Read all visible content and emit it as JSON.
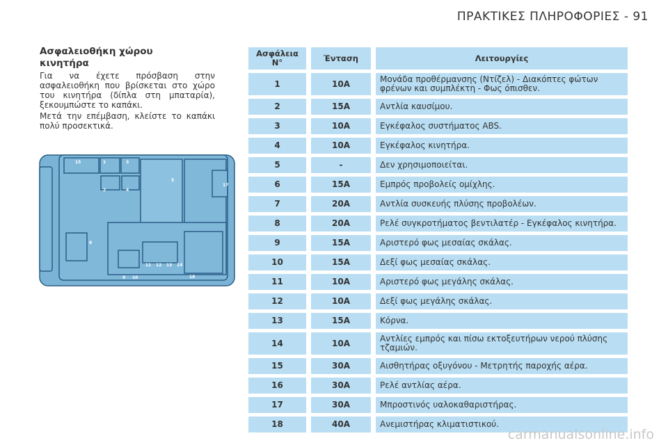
{
  "header": {
    "title": "ΠΡΑΚΤΙΚΕΣ ΠΛΗΡΟΦΟΡΙΕΣ - 91"
  },
  "section": {
    "title": "Ασφαλειοθήκη χώρου κινητήρα",
    "paragraphs": [
      "Για να έχετε πρόσβαση στην ασφαλειοθήκη που βρίσκεται στο χώρο του κινητήρα (δίπλα στη μπαταρία), ξεκουμπώστε το καπάκι.",
      "Μετά την επέμβαση, κλείστε το καπάκι πολύ προσεκτικά."
    ]
  },
  "diagram": {
    "labels": [
      "15",
      "1",
      "3",
      "2",
      "4",
      "5",
      "17",
      "8",
      "9",
      "10",
      "11",
      "12",
      "13",
      "14",
      "18"
    ]
  },
  "table": {
    "columns": [
      "Ασφάλεια\nN°",
      "Ένταση",
      "Λειτουργίες"
    ],
    "rows": [
      [
        "1",
        "10A",
        "Μονάδα προθέρμανσης (Ντίζελ) - Διακόπτες φώτων φρένων και συμπλέκτη - Φως όπισθεν."
      ],
      [
        "2",
        "15A",
        "Αντλία καυσίμου."
      ],
      [
        "3",
        "10A",
        "Εγκέφαλος συστήματος ABS."
      ],
      [
        "4",
        "10A",
        "Εγκέφαλος κινητήρα."
      ],
      [
        "5",
        "-",
        "Δεν χρησιμοποιείται."
      ],
      [
        "6",
        "15A",
        "Εμπρός προβολείς ομίχλης."
      ],
      [
        "7",
        "20A",
        "Αντλία συσκευής πλύσης προβολέων."
      ],
      [
        "8",
        "20A",
        "Ρελέ συγκροτήματος βεντιλατέρ - Εγκέφαλος κινητήρα."
      ],
      [
        "9",
        "15A",
        "Αριστερό φως μεσαίας σκάλας."
      ],
      [
        "10",
        "15A",
        "Δεξί φως μεσαίας σκάλας."
      ],
      [
        "11",
        "10A",
        "Αριστερό φως μεγάλης σκάλας."
      ],
      [
        "12",
        "10A",
        "Δεξί φως μεγάλης σκάλας."
      ],
      [
        "13",
        "15A",
        "Κόρνα."
      ],
      [
        "14",
        "10A",
        "Αντλίες εμπρός και πίσω εκτοξευτήρων νερού πλύσης τζαμιών."
      ],
      [
        "15",
        "30A",
        "Αισθητήρας οξυγόνου - Μετρητής παροχής αέρα."
      ],
      [
        "16",
        "30A",
        "Ρελέ αντλίας αέρα."
      ],
      [
        "17",
        "30A",
        "Μπροστινός υαλοκαθαριστήρας."
      ],
      [
        "18",
        "40A",
        "Ανεμιστήρας κλιματιστικού."
      ]
    ]
  },
  "watermark": "carmanualsonline.info"
}
